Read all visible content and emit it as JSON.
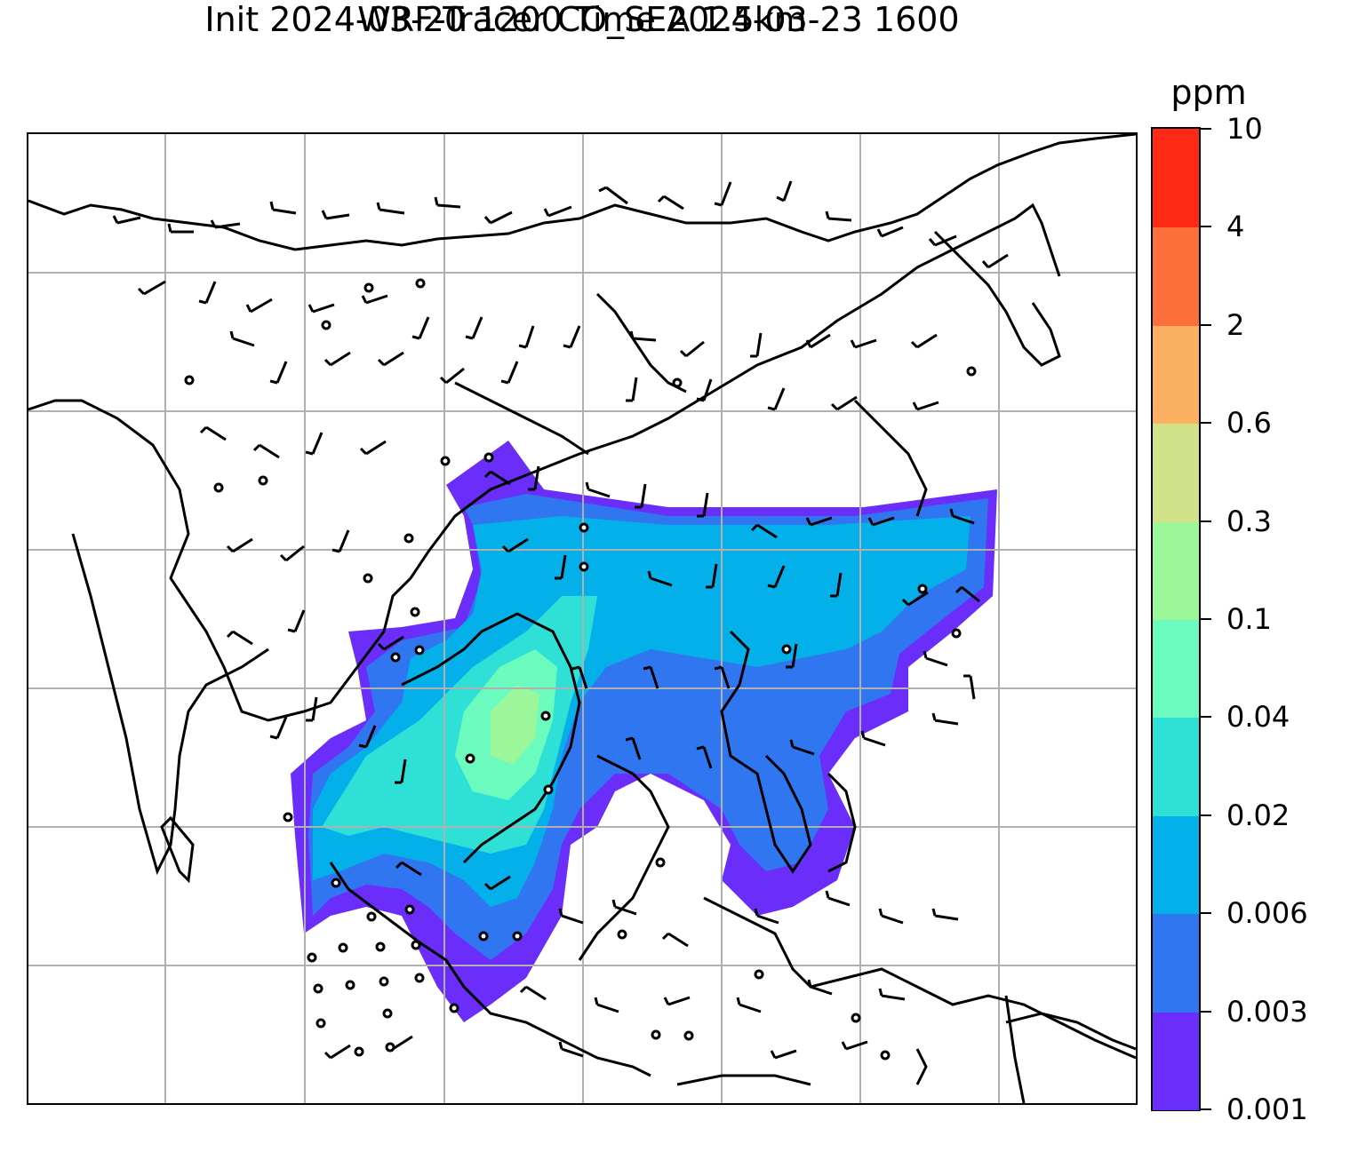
{
  "title": {
    "line1": "WRF-Tracer CO_SEA 1.5km",
    "line2": "Init 2024-03-20 1200 Time 2024-03-23 1600"
  },
  "colorbar": {
    "unit": "ppm",
    "levels": [
      "0.001",
      "0.003",
      "0.006",
      "0.02",
      "0.04",
      "0.1",
      "0.3",
      "0.6",
      "2",
      "4",
      "10"
    ],
    "colors": [
      "#6a2dfa",
      "#3076f0",
      "#04b0ea",
      "#2ee0d6",
      "#6cfbbe",
      "#9cf79a",
      "#d1e28b",
      "#fcb061",
      "#fd6f3b",
      "#ff2a15"
    ]
  },
  "map": {
    "field": "CO_SEA",
    "gridline_color": "#b0b0b0",
    "coastline_color": "#000000",
    "wind_barb_color": "#000000"
  }
}
